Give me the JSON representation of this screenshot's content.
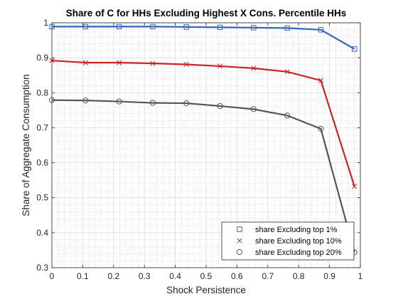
{
  "chart_data": {
    "type": "line",
    "title": "Share of C for HHs Excluding Highest X Cons. Percentile HHs",
    "xlabel": "Shock Persistence",
    "ylabel": "Share of Aggregate Consumption",
    "xlim": [
      0,
      1
    ],
    "ylim": [
      0.3,
      1
    ],
    "xticks": [
      0,
      0.1,
      0.2,
      0.3,
      0.4,
      0.5,
      0.6,
      0.7,
      0.8,
      0.9,
      1
    ],
    "xtick_labels": [
      "0",
      "0.1",
      "0.2",
      "0.3",
      "0.4",
      "0.5",
      "0.6",
      "0.7",
      "0.8",
      "0.9",
      "1"
    ],
    "yticks": [
      0.3,
      0.4,
      0.5,
      0.6,
      0.7,
      0.8,
      0.9,
      1
    ],
    "ytick_labels": [
      "0.3",
      "0.4",
      "0.5",
      "0.6",
      "0.7",
      "0.8",
      "0.9",
      "1"
    ],
    "grid": true,
    "minor_grid": true,
    "legend_position": "bottom-right",
    "x": [
      0,
      0.109,
      0.218,
      0.327,
      0.436,
      0.545,
      0.654,
      0.763,
      0.872,
      0.981
    ],
    "series": [
      {
        "name": "share Excluding top 1%",
        "color": "#3366bb",
        "marker": "square",
        "values": [
          0.989,
          0.989,
          0.989,
          0.989,
          0.988,
          0.987,
          0.986,
          0.985,
          0.98,
          0.925
        ]
      },
      {
        "name": "share Excluding top 10%",
        "color": "#cc2222",
        "marker": "x",
        "values": [
          0.892,
          0.886,
          0.886,
          0.884,
          0.881,
          0.876,
          0.87,
          0.86,
          0.835,
          0.532
        ]
      },
      {
        "name": "share Excluding top 20%",
        "color": "#555555",
        "marker": "circle",
        "values": [
          0.779,
          0.778,
          0.775,
          0.771,
          0.77,
          0.762,
          0.753,
          0.735,
          0.697,
          0.344
        ]
      }
    ]
  }
}
